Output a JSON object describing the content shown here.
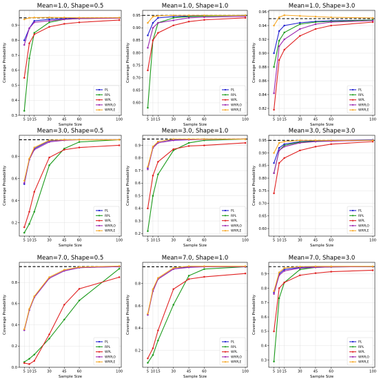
{
  "chart_data": [
    {
      "type": "line",
      "title": "Mean=1.0, Shape=0.5",
      "xlabel": "Sample Size",
      "ylabel": "Coverage Probability",
      "x": [
        5,
        10,
        15,
        30,
        45,
        60,
        100
      ],
      "x_ticks": [
        5,
        10,
        15,
        30,
        45,
        60,
        100
      ],
      "x_tick_labels": [
        "5",
        "10",
        "15",
        "30",
        "45",
        "60",
        "100"
      ],
      "xlim": [
        0,
        102
      ],
      "ylim": [
        0.3,
        1.0
      ],
      "y_ticks": [
        0.3,
        0.4,
        0.5,
        0.6,
        0.7,
        0.8,
        0.9
      ],
      "y_tick_labels": [
        "0.3",
        "0.4",
        "0.5",
        "0.6",
        "0.7",
        "0.8",
        "0.9"
      ],
      "reference_line": 0.95,
      "grid": true,
      "legend_position": "lower-right",
      "series": [
        {
          "name": "PL",
          "color": "#1f1fd0",
          "values": [
            0.8,
            0.88,
            0.93,
            0.94,
            0.945,
            0.948,
            0.95
          ]
        },
        {
          "name": "RPL",
          "color": "#1a9a1a",
          "values": [
            0.33,
            0.68,
            0.85,
            0.92,
            0.94,
            0.945,
            0.95
          ]
        },
        {
          "name": "WPL",
          "color": "#e02020",
          "values": [
            0.55,
            0.78,
            0.84,
            0.89,
            0.91,
            0.92,
            0.935
          ]
        },
        {
          "name": "WRPLO",
          "color": "#9c27b0",
          "values": [
            0.77,
            0.88,
            0.92,
            0.93,
            0.94,
            0.945,
            0.948
          ]
        },
        {
          "name": "WRPLE",
          "color": "#f5a623",
          "values": [
            0.94,
            0.95,
            0.952,
            0.953,
            0.952,
            0.951,
            0.951
          ]
        }
      ]
    },
    {
      "type": "line",
      "title": "Mean=1.0, Shape=1.0",
      "xlabel": "Sample Size",
      "ylabel": "Coverage Probability",
      "x": [
        5,
        10,
        15,
        30,
        45,
        60,
        100
      ],
      "x_ticks": [
        5,
        10,
        15,
        30,
        45,
        60,
        100
      ],
      "x_tick_labels": [
        "5",
        "10",
        "15",
        "30",
        "45",
        "60",
        "100"
      ],
      "xlim": [
        0,
        102
      ],
      "ylim": [
        0.55,
        0.97
      ],
      "y_ticks": [
        0.6,
        0.65,
        0.7,
        0.75,
        0.8,
        0.85,
        0.9,
        0.95
      ],
      "y_tick_labels": [
        "0.60",
        "0.65",
        "0.70",
        "0.75",
        "0.80",
        "0.85",
        "0.90",
        "0.95"
      ],
      "reference_line": 0.95,
      "grid": true,
      "legend_position": "lower-right",
      "series": [
        {
          "name": "PL",
          "color": "#1f1fd0",
          "values": [
            0.87,
            0.92,
            0.94,
            0.945,
            0.947,
            0.948,
            0.95
          ]
        },
        {
          "name": "RPL",
          "color": "#1a9a1a",
          "values": [
            0.58,
            0.85,
            0.92,
            0.94,
            0.945,
            0.947,
            0.95
          ]
        },
        {
          "name": "WPL",
          "color": "#e02020",
          "values": [
            0.73,
            0.85,
            0.88,
            0.91,
            0.925,
            0.932,
            0.94
          ]
        },
        {
          "name": "WRPLO",
          "color": "#9c27b0",
          "values": [
            0.82,
            0.9,
            0.92,
            0.93,
            0.94,
            0.943,
            0.946
          ]
        },
        {
          "name": "WRPLE",
          "color": "#f5a623",
          "values": [
            0.92,
            0.945,
            0.948,
            0.95,
            0.95,
            0.95,
            0.95
          ]
        }
      ]
    },
    {
      "type": "line",
      "title": "Mean=1.0, Shape=3.0",
      "xlabel": "Sample Size",
      "ylabel": "Coverage Probability",
      "x": [
        5,
        10,
        15,
        30,
        45,
        60,
        100
      ],
      "x_ticks": [
        5,
        10,
        15,
        30,
        45,
        60,
        100
      ],
      "x_tick_labels": [
        "5",
        "10",
        "15",
        "30",
        "45",
        "60",
        "100"
      ],
      "xlim": [
        0,
        102
      ],
      "ylim": [
        0.81,
        0.962
      ],
      "y_ticks": [
        0.82,
        0.84,
        0.86,
        0.88,
        0.9,
        0.92,
        0.94,
        0.96
      ],
      "y_tick_labels": [
        "0.82",
        "0.84",
        "0.86",
        "0.88",
        "0.90",
        "0.92",
        "0.94",
        "0.96"
      ],
      "reference_line": 0.95,
      "grid": true,
      "legend_position": "lower-right",
      "series": [
        {
          "name": "PL",
          "color": "#1f1fd0",
          "values": [
            0.9,
            0.932,
            0.94,
            0.944,
            0.946,
            0.947,
            0.948
          ]
        },
        {
          "name": "RPL",
          "color": "#1a9a1a",
          "values": [
            0.88,
            0.918,
            0.93,
            0.942,
            0.945,
            0.946,
            0.948
          ]
        },
        {
          "name": "WPL",
          "color": "#e02020",
          "values": [
            0.818,
            0.89,
            0.905,
            0.925,
            0.935,
            0.94,
            0.945
          ]
        },
        {
          "name": "WRPLO",
          "color": "#9c27b0",
          "values": [
            0.842,
            0.91,
            0.92,
            0.935,
            0.942,
            0.945,
            0.947
          ]
        },
        {
          "name": "WRPLE",
          "color": "#f5a623",
          "values": [
            0.94,
            0.952,
            0.955,
            0.954,
            0.953,
            0.952,
            0.951
          ]
        }
      ]
    },
    {
      "type": "line",
      "title": "Mean=3.0, Shape=0.5",
      "xlabel": "Sample Size",
      "ylabel": "Coverage Probability",
      "x": [
        5,
        10,
        15,
        30,
        45,
        60,
        100
      ],
      "x_ticks": [
        5,
        10,
        15,
        30,
        45,
        60,
        100
      ],
      "x_tick_labels": [
        "5",
        "10",
        "15",
        "30",
        "45",
        "60",
        "100"
      ],
      "xlim": [
        0,
        102
      ],
      "ylim": [
        0.08,
        0.99
      ],
      "y_ticks": [
        0.2,
        0.4,
        0.6,
        0.8
      ],
      "y_tick_labels": [
        "0.2",
        "0.4",
        "0.6",
        "0.8"
      ],
      "reference_line": 0.95,
      "grid": true,
      "legend_position": "lower-right",
      "series": [
        {
          "name": "PL",
          "color": "#1f1fd0",
          "values": [
            0.55,
            0.77,
            0.87,
            0.94,
            0.95,
            0.95,
            0.95
          ]
        },
        {
          "name": "RPL",
          "color": "#1a9a1a",
          "values": [
            0.11,
            0.19,
            0.3,
            0.72,
            0.87,
            0.93,
            0.95
          ]
        },
        {
          "name": "WPL",
          "color": "#e02020",
          "values": [
            0.16,
            0.3,
            0.48,
            0.79,
            0.86,
            0.88,
            0.9
          ]
        },
        {
          "name": "WRPLO",
          "color": "#9c27b0",
          "values": [
            0.56,
            0.77,
            0.86,
            0.93,
            0.945,
            0.95,
            0.95
          ]
        },
        {
          "name": "WRPLE",
          "color": "#f5a623",
          "values": [
            0.58,
            0.78,
            0.88,
            0.945,
            0.95,
            0.95,
            0.95
          ]
        }
      ]
    },
    {
      "type": "line",
      "title": "Mean=3.0, Shape=1.0",
      "xlabel": "Sample Size",
      "ylabel": "Coverage Probability",
      "x": [
        5,
        10,
        15,
        30,
        45,
        60,
        100
      ],
      "x_ticks": [
        5,
        10,
        15,
        30,
        45,
        60,
        100
      ],
      "x_tick_labels": [
        "5",
        "10",
        "15",
        "30",
        "45",
        "60",
        "100"
      ],
      "xlim": [
        0,
        102
      ],
      "ylim": [
        0.18,
        0.98
      ],
      "y_ticks": [
        0.2,
        0.3,
        0.4,
        0.5,
        0.6,
        0.7,
        0.8,
        0.9
      ],
      "y_tick_labels": [
        "0.2",
        "0.3",
        "0.4",
        "0.5",
        "0.6",
        "0.7",
        "0.8",
        "0.9"
      ],
      "reference_line": 0.95,
      "grid": true,
      "legend_position": "lower-right",
      "series": [
        {
          "name": "PL",
          "color": "#1f1fd0",
          "values": [
            0.72,
            0.88,
            0.93,
            0.945,
            0.948,
            0.95,
            0.95
          ]
        },
        {
          "name": "RPL",
          "color": "#1a9a1a",
          "values": [
            0.22,
            0.5,
            0.67,
            0.86,
            0.92,
            0.94,
            0.95
          ]
        },
        {
          "name": "WPL",
          "color": "#e02020",
          "values": [
            0.4,
            0.66,
            0.77,
            0.87,
            0.895,
            0.9,
            0.92
          ]
        },
        {
          "name": "WRPLO",
          "color": "#9c27b0",
          "values": [
            0.71,
            0.88,
            0.92,
            0.94,
            0.945,
            0.948,
            0.95
          ]
        },
        {
          "name": "WRPLE",
          "color": "#f5a623",
          "values": [
            0.73,
            0.89,
            0.93,
            0.95,
            0.95,
            0.95,
            0.95
          ]
        }
      ]
    },
    {
      "type": "line",
      "title": "Mean=3.0, Shape=3.0",
      "xlabel": "Sample Size",
      "ylabel": "Coverage Probability",
      "x": [
        5,
        10,
        15,
        30,
        45,
        60,
        100
      ],
      "x_ticks": [
        5,
        10,
        15,
        30,
        45,
        60,
        100
      ],
      "x_tick_labels": [
        "5",
        "10",
        "15",
        "30",
        "45",
        "60",
        "100"
      ],
      "xlim": [
        0,
        102
      ],
      "ylim": [
        0.57,
        0.97
      ],
      "y_ticks": [
        0.6,
        0.65,
        0.7,
        0.75,
        0.8,
        0.85,
        0.9,
        0.95
      ],
      "y_tick_labels": [
        "0.60",
        "0.65",
        "0.70",
        "0.75",
        "0.80",
        "0.85",
        "0.90",
        "0.95"
      ],
      "reference_line": 0.95,
      "grid": true,
      "legend_position": "lower-right",
      "series": [
        {
          "name": "PL",
          "color": "#1f1fd0",
          "values": [
            0.86,
            0.92,
            0.935,
            0.945,
            0.948,
            0.95,
            0.952
          ]
        },
        {
          "name": "RPL",
          "color": "#1a9a1a",
          "values": [
            0.82,
            0.91,
            0.93,
            0.943,
            0.946,
            0.948,
            0.95
          ]
        },
        {
          "name": "WPL",
          "color": "#e02020",
          "values": [
            0.74,
            0.86,
            0.88,
            0.91,
            0.925,
            0.935,
            0.945
          ]
        },
        {
          "name": "WRPLO",
          "color": "#9c27b0",
          "values": [
            0.82,
            0.91,
            0.925,
            0.94,
            0.945,
            0.947,
            0.95
          ]
        },
        {
          "name": "WRPLE",
          "color": "#f5a623",
          "values": [
            0.9,
            0.94,
            0.945,
            0.95,
            0.95,
            0.95,
            0.95
          ]
        }
      ]
    },
    {
      "type": "line",
      "title": "Mean=7.0, Shape=0.5",
      "xlabel": "Sample Size",
      "ylabel": "Coverage Probability",
      "x": [
        5,
        10,
        15,
        30,
        45,
        60,
        100
      ],
      "x_ticks": [
        5,
        10,
        15,
        30,
        45,
        60,
        100
      ],
      "x_tick_labels": [
        "5",
        "10",
        "15",
        "30",
        "45",
        "60",
        "100"
      ],
      "xlim": [
        0,
        102
      ],
      "ylim": [
        0.0,
        0.99
      ],
      "y_ticks": [
        0.0,
        0.2,
        0.4,
        0.6,
        0.8
      ],
      "y_tick_labels": [
        "0.0",
        "0.2",
        "0.4",
        "0.6",
        "0.8"
      ],
      "reference_line": 0.95,
      "grid": true,
      "legend_position": "lower-right",
      "series": [
        {
          "name": "PL",
          "color": "#1f1fd0",
          "values": [
            0.35,
            0.54,
            0.66,
            0.84,
            0.91,
            0.94,
            0.95
          ]
        },
        {
          "name": "RPL",
          "color": "#1a9a1a",
          "values": [
            0.05,
            0.08,
            0.12,
            0.27,
            0.45,
            0.63,
            0.93
          ]
        },
        {
          "name": "WPL",
          "color": "#e02020",
          "values": [
            0.04,
            0.03,
            0.06,
            0.31,
            0.59,
            0.74,
            0.85
          ]
        },
        {
          "name": "WRPLO",
          "color": "#9c27b0",
          "values": [
            0.35,
            0.54,
            0.66,
            0.84,
            0.91,
            0.94,
            0.95
          ]
        },
        {
          "name": "WRPLE",
          "color": "#f5a623",
          "values": [
            0.36,
            0.55,
            0.67,
            0.85,
            0.92,
            0.945,
            0.955
          ]
        }
      ]
    },
    {
      "type": "line",
      "title": "Mean=7.0, Shape=1.0",
      "xlabel": "Sample Size",
      "ylabel": "Coverage Probability",
      "x": [
        5,
        10,
        15,
        30,
        45,
        60,
        100
      ],
      "x_ticks": [
        5,
        10,
        15,
        30,
        45,
        60,
        100
      ],
      "x_tick_labels": [
        "5",
        "10",
        "15",
        "30",
        "45",
        "60",
        "100"
      ],
      "xlim": [
        0,
        102
      ],
      "ylim": [
        0.05,
        0.99
      ],
      "y_ticks": [
        0.2,
        0.4,
        0.6,
        0.8
      ],
      "y_tick_labels": [
        "0.2",
        "0.4",
        "0.6",
        "0.8"
      ],
      "reference_line": 0.95,
      "grid": true,
      "legend_position": "lower-right",
      "series": [
        {
          "name": "PL",
          "color": "#1f1fd0",
          "values": [
            0.52,
            0.74,
            0.84,
            0.93,
            0.95,
            0.95,
            0.95
          ]
        },
        {
          "name": "RPL",
          "color": "#1a9a1a",
          "values": [
            0.09,
            0.16,
            0.29,
            0.61,
            0.87,
            0.93,
            0.95
          ]
        },
        {
          "name": "WPL",
          "color": "#e02020",
          "values": [
            0.13,
            0.22,
            0.38,
            0.75,
            0.84,
            0.86,
            0.89
          ]
        },
        {
          "name": "WRPLO",
          "color": "#9c27b0",
          "values": [
            0.52,
            0.73,
            0.84,
            0.93,
            0.945,
            0.95,
            0.95
          ]
        },
        {
          "name": "WRPLE",
          "color": "#f5a623",
          "values": [
            0.53,
            0.75,
            0.85,
            0.94,
            0.955,
            0.955,
            0.955
          ]
        }
      ]
    },
    {
      "type": "line",
      "title": "Mean=7.0, Shape=3.0",
      "xlabel": "Sample Size",
      "ylabel": "Coverage Probability",
      "x": [
        5,
        10,
        15,
        30,
        45,
        60,
        100
      ],
      "x_ticks": [
        5,
        10,
        15,
        30,
        45,
        60,
        100
      ],
      "x_tick_labels": [
        "5",
        "10",
        "15",
        "30",
        "45",
        "60",
        "100"
      ],
      "xlim": [
        0,
        102
      ],
      "ylim": [
        0.25,
        0.98
      ],
      "y_ticks": [
        0.3,
        0.4,
        0.5,
        0.6,
        0.7,
        0.8,
        0.9
      ],
      "y_tick_labels": [
        "0.3",
        "0.4",
        "0.5",
        "0.6",
        "0.7",
        "0.8",
        "0.9"
      ],
      "reference_line": 0.95,
      "grid": true,
      "legend_position": "lower-right",
      "series": [
        {
          "name": "PL",
          "color": "#1f1fd0",
          "values": [
            0.77,
            0.9,
            0.93,
            0.945,
            0.948,
            0.95,
            0.95
          ]
        },
        {
          "name": "RPL",
          "color": "#1a9a1a",
          "values": [
            0.29,
            0.73,
            0.84,
            0.93,
            0.945,
            0.948,
            0.95
          ]
        },
        {
          "name": "WPL",
          "color": "#e02020",
          "values": [
            0.5,
            0.8,
            0.84,
            0.89,
            0.905,
            0.915,
            0.925
          ]
        },
        {
          "name": "WRPLO",
          "color": "#9c27b0",
          "values": [
            0.76,
            0.89,
            0.92,
            0.94,
            0.945,
            0.948,
            0.95
          ]
        },
        {
          "name": "WRPLE",
          "color": "#f5a623",
          "values": [
            0.78,
            0.91,
            0.94,
            0.95,
            0.952,
            0.952,
            0.952
          ]
        }
      ]
    }
  ]
}
